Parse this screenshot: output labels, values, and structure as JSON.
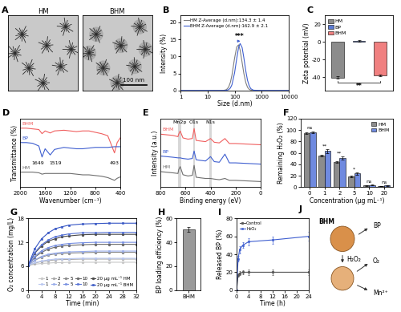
{
  "chart_data": [
    {
      "panel": "A",
      "type": "image",
      "labels": [
        "HM",
        "BHM"
      ],
      "scale_bar": "100 nm"
    },
    {
      "panel": "B",
      "type": "line",
      "x_label": "Size (d.nm)",
      "y_label": "Intensity (%)",
      "log": "x",
      "xlim": [
        1,
        10000
      ],
      "xticks": [
        1,
        10,
        100,
        1000,
        10000
      ],
      "ylim": [
        0,
        22
      ],
      "yticks": [
        0,
        5,
        10,
        15,
        20
      ],
      "x": [
        1,
        10,
        30,
        40,
        50,
        60,
        70,
        80,
        100,
        120,
        140,
        160,
        190,
        220,
        260,
        300,
        350,
        400,
        500,
        1000,
        10000
      ],
      "series": [
        {
          "name": "HM Z-Average (d.nm):134.3 ± 1.4",
          "color": "#7f7f7f",
          "values": [
            0,
            0,
            0,
            0.03,
            0.25,
            0.96,
            2.4,
            4.5,
            9.5,
            12.8,
            13.4,
            11.9,
            8.2,
            5.0,
            2.3,
            0.95,
            0.31,
            0.1,
            0,
            0,
            0
          ]
        },
        {
          "name": "BHM Z-Average (d.nm):162.9 ± 2.1",
          "color": "#3f5fd0",
          "values": [
            0,
            0,
            0,
            0,
            0.05,
            0.23,
            0.74,
            1.7,
            5.2,
            9.4,
            12.6,
            13.8,
            12.6,
            9.6,
            5.7,
            3.0,
            1.3,
            0.5,
            0.08,
            0,
            0
          ]
        }
      ],
      "legend": "upper left",
      "annotations": [
        {
          "text": "***",
          "x": [
            134.3,
            162.9
          ],
          "y": 14.5
        }
      ]
    },
    {
      "panel": "C",
      "type": "bar",
      "y_label": "Zeta potential (mV)",
      "categories": [
        "HM",
        "BP",
        "BHM"
      ],
      "values": [
        -40.2,
        1.5,
        -38.1
      ],
      "errors": [
        1.2,
        1.0,
        1.1
      ],
      "colors": [
        "#8c8c8c",
        "#5b7bd5",
        "#f08080"
      ],
      "ylim": [
        -55,
        30
      ],
      "yticks": [
        -40,
        -20,
        0,
        20
      ],
      "tick_labels": "y",
      "legend": "upper left",
      "significance": [
        {
          "between": [
            0,
            2
          ],
          "text": "**"
        }
      ]
    },
    {
      "panel": "D",
      "type": "line",
      "x_label": "Wavenumber (cm⁻¹)",
      "y_label": "Transmittance (%)",
      "xlim": [
        2000,
        400
      ],
      "xticks": [
        2000,
        1600,
        1200,
        800,
        400
      ],
      "ylim": [
        0,
        10
      ],
      "tick_labels": "x",
      "x": [
        2000,
        1900,
        1800,
        1700,
        1649,
        1600,
        1519,
        1450,
        1300,
        1200,
        1100,
        1000,
        900,
        800,
        700,
        600,
        493,
        450,
        400
      ],
      "series": [
        {
          "name": "BHM",
          "color": "#f06060",
          "values": [
            8.6,
            8.6,
            8.5,
            8.4,
            7.8,
            8.2,
            7.9,
            8.2,
            8.3,
            8.2,
            8.1,
            8.2,
            8.2,
            8.0,
            7.8,
            7.5,
            5.0,
            6.5,
            7.2
          ]
        },
        {
          "name": "BP",
          "color": "#3f5fd0",
          "values": [
            6.5,
            6.5,
            6.4,
            6.0,
            4.4,
            5.6,
            4.7,
            5.5,
            5.8,
            5.7,
            5.6,
            5.6,
            5.7,
            5.8,
            5.8,
            5.8,
            5.9,
            5.9,
            5.9
          ]
        },
        {
          "name": "HM",
          "color": "#6f6f6f",
          "values": [
            2.2,
            2.2,
            2.2,
            2.1,
            1.9,
            2.0,
            2.0,
            2.0,
            2.0,
            2.0,
            1.9,
            1.8,
            1.8,
            1.7,
            1.6,
            1.4,
            1.0,
            1.3,
            1.5
          ]
        }
      ],
      "annotations": [
        {
          "text": "1649",
          "x": 1720,
          "y": 3.5
        },
        {
          "text": "1519",
          "x": 1430,
          "y": 3.5
        },
        {
          "text": "493",
          "x": 493,
          "y": 3.5
        }
      ]
    },
    {
      "panel": "E",
      "type": "line",
      "x_label": "Binding energy (eV)",
      "y_label": "Intensity (a.u.)",
      "xlim": [
        800,
        0
      ],
      "xticks": [
        800,
        600,
        400,
        200,
        0
      ],
      "ylim": [
        0,
        11
      ],
      "tick_labels": "x",
      "x": [
        800,
        750,
        700,
        660,
        654,
        642,
        620,
        580,
        545,
        531,
        515,
        480,
        440,
        400,
        370,
        330,
        285,
        250,
        200,
        100,
        0
      ],
      "series": [
        {
          "name": "BHM",
          "color": "#f06060",
          "values": [
            8.5,
            8.4,
            8.3,
            8.1,
            8.5,
            9.0,
            7.9,
            7.7,
            7.8,
            9.4,
            7.5,
            7.4,
            7.3,
            7.8,
            7.2,
            7.1,
            7.8,
            7.0,
            7.0,
            6.9,
            6.8
          ]
        },
        {
          "name": "BP",
          "color": "#3f5fd0",
          "values": [
            5.0,
            4.9,
            4.8,
            4.7,
            4.7,
            4.7,
            4.6,
            4.5,
            4.6,
            5.8,
            4.4,
            4.3,
            4.2,
            4.9,
            4.1,
            4.0,
            5.3,
            3.9,
            3.9,
            3.8,
            3.7
          ]
        },
        {
          "name": "HM",
          "color": "#6f6f6f",
          "values": [
            2.5,
            2.4,
            2.3,
            2.2,
            2.8,
            3.3,
            2.0,
            1.8,
            1.9,
            3.5,
            1.6,
            1.5,
            1.4,
            1.4,
            1.3,
            1.2,
            1.4,
            1.1,
            1.1,
            1.0,
            0.9
          ]
        }
      ],
      "bands": [
        {
          "label": "Mn2p",
          "range": [
            636,
            660
          ]
        },
        {
          "label": "O1s",
          "range": [
            522,
            540
          ]
        },
        {
          "label": "N1s",
          "range": [
            392,
            408
          ]
        }
      ]
    },
    {
      "panel": "F",
      "type": "bar",
      "x_label": "Concentration (μg mL⁻¹)",
      "y_label": "Remaining H₂O₂ (%)",
      "categories": [
        "0",
        "1",
        "2",
        "5",
        "10",
        "20"
      ],
      "series": [
        {
          "name": "HM",
          "color": "#8c8c8c",
          "values": [
            95,
            55,
            44,
            19,
            3,
            2
          ],
          "errors": [
            1.5,
            1.5,
            1.5,
            1.5,
            0.5,
            0.5
          ]
        },
        {
          "name": "BHM",
          "color": "#6f8ae0",
          "values": [
            96,
            63,
            51,
            24,
            4,
            3
          ],
          "errors": [
            1.5,
            3,
            2.5,
            2,
            0.5,
            0.5
          ]
        }
      ],
      "ylim": [
        0,
        120
      ],
      "yticks": [
        0,
        20,
        40,
        60,
        80,
        100,
        120
      ],
      "legend": "upper right",
      "significance": [
        "ns",
        "**",
        "**",
        "*",
        "ns",
        "ns"
      ]
    },
    {
      "panel": "G",
      "type": "line",
      "x_label": "Time (min)",
      "y_label": "O₂ concentration (mg/L)",
      "xlim": [
        0,
        32
      ],
      "xticks": [
        0,
        4,
        8,
        12,
        16,
        20,
        24,
        28,
        32
      ],
      "ylim": [
        0,
        18
      ],
      "yticks": [
        0,
        6,
        12,
        18
      ],
      "x": [
        0,
        2,
        4,
        6,
        8,
        10,
        12,
        16,
        20,
        24,
        28,
        32
      ],
      "series": [
        {
          "name": "1",
          "color": "#c8c8c8",
          "marker": "o",
          "values": [
            6.2,
            6.5,
            6.7,
            6.8,
            6.9,
            6.9,
            7.0,
            7.0,
            7.0,
            7.0,
            7.0,
            7.0
          ]
        },
        {
          "name": "2",
          "color": "#a8a8a8",
          "marker": "o",
          "values": [
            6.2,
            6.8,
            7.2,
            7.4,
            7.6,
            7.7,
            7.7,
            7.8,
            7.8,
            7.8,
            7.8,
            7.8
          ]
        },
        {
          "name": "5",
          "color": "#888888",
          "marker": "o",
          "values": [
            6.2,
            7.5,
            8.3,
            8.8,
            9.1,
            9.2,
            9.3,
            9.4,
            9.5,
            9.5,
            9.5,
            9.5
          ]
        },
        {
          "name": "10",
          "color": "#686868",
          "marker": "o",
          "values": [
            6.2,
            8.3,
            9.5,
            10.3,
            10.8,
            11.1,
            11.2,
            11.4,
            11.5,
            11.5,
            11.5,
            11.5
          ]
        },
        {
          "name": "20 μg mL⁻¹ HM",
          "color": "#484848",
          "marker": "o",
          "values": [
            6.2,
            9.3,
            11.1,
            12.3,
            12.9,
            13.4,
            13.6,
            13.9,
            14.0,
            14.0,
            14.0,
            14.0
          ]
        },
        {
          "name": "1",
          "color": "#b9c7f0",
          "marker": "s",
          "values": [
            6.2,
            6.9,
            7.3,
            7.6,
            7.8,
            7.9,
            7.9,
            8.0,
            8.0,
            8.0,
            8.0,
            8.0
          ]
        },
        {
          "name": "2",
          "color": "#98acea",
          "marker": "s",
          "values": [
            6.2,
            7.6,
            8.5,
            9.0,
            9.3,
            9.5,
            9.6,
            9.7,
            9.8,
            9.8,
            9.8,
            9.8
          ]
        },
        {
          "name": "5",
          "color": "#778fe0",
          "marker": "s",
          "values": [
            6.2,
            8.5,
            9.9,
            10.7,
            11.2,
            11.5,
            11.7,
            11.9,
            12.0,
            12.0,
            12.0,
            12.0
          ]
        },
        {
          "name": "10",
          "color": "#5672d4",
          "marker": "s",
          "values": [
            6.2,
            9.5,
            11.4,
            12.6,
            13.4,
            13.8,
            14.1,
            14.4,
            14.4,
            14.5,
            14.5,
            14.5
          ]
        },
        {
          "name": "20 μg mL⁻¹ BHM",
          "color": "#3555c4",
          "marker": "s",
          "values": [
            6.2,
            10.4,
            12.9,
            14.4,
            15.4,
            15.9,
            16.3,
            16.6,
            16.7,
            16.8,
            16.8,
            16.8
          ]
        }
      ],
      "legend": "lower right"
    },
    {
      "panel": "H",
      "type": "bar",
      "y_label": "BP loading efficiency (%)",
      "categories": [
        "BHM"
      ],
      "values": [
        50.5
      ],
      "errors": [
        2.0
      ],
      "color": "#9a9a9a",
      "ylim": [
        0,
        60
      ],
      "yticks": [
        0,
        20,
        40,
        60
      ]
    },
    {
      "panel": "I",
      "type": "line",
      "x_label": "Time (h)",
      "y_label": "Released BP (%)",
      "xlim": [
        0,
        24
      ],
      "xticks": [
        0,
        4,
        8,
        12,
        16,
        20,
        24
      ],
      "ylim": [
        0,
        80
      ],
      "yticks": [
        0,
        20,
        40,
        60,
        80
      ],
      "x": [
        0,
        0.5,
        1,
        2,
        4,
        12,
        24
      ],
      "series": [
        {
          "name": "Control",
          "color": "#555555",
          "marker": "o",
          "values": [
            0,
            17,
            19,
            20,
            20,
            20,
            20
          ],
          "errors": [
            0,
            2,
            2,
            2,
            3,
            3,
            3
          ]
        },
        {
          "name": "H₂O₂",
          "color": "#3f5fd0",
          "marker": "s",
          "values": [
            0,
            35,
            45,
            50,
            54,
            56,
            60
          ],
          "errors": [
            0,
            3,
            4,
            3,
            4,
            4,
            5
          ]
        }
      ],
      "legend": "upper left"
    },
    {
      "panel": "J",
      "type": "diagram",
      "nodes": [
        "BHM",
        "H₂O₂",
        "BP",
        "O₂",
        "Mn²⁺"
      ]
    }
  ]
}
